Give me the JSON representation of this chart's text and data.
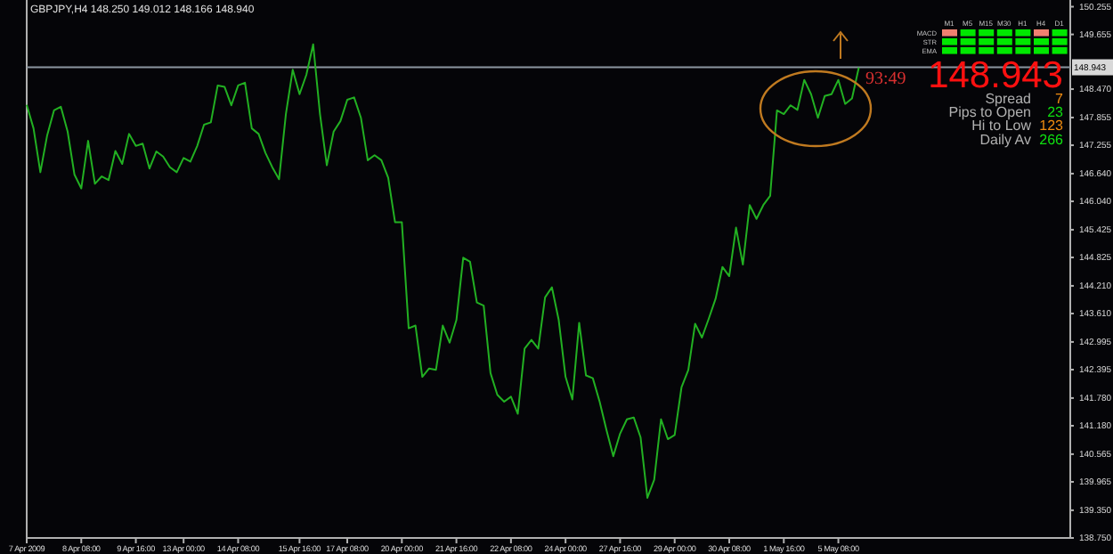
{
  "chart_data": {
    "type": "line",
    "title": "GBPJPY,H4 148.250 149.012 148.166 148.940",
    "categories": [
      "7 Apr 2009",
      null,
      null,
      null,
      null,
      null,
      null,
      null,
      "8 Apr 08:00",
      null,
      null,
      null,
      null,
      null,
      null,
      null,
      "9 Apr 16:00",
      null,
      null,
      null,
      null,
      null,
      null,
      "13 Apr 00:00",
      null,
      null,
      null,
      null,
      null,
      null,
      null,
      "14 Apr 08:00",
      null,
      null,
      null,
      null,
      null,
      null,
      null,
      null,
      "15 Apr 16:00",
      null,
      null,
      null,
      null,
      null,
      null,
      "17 Apr 08:00",
      null,
      null,
      null,
      null,
      null,
      null,
      null,
      "20 Apr 00:00",
      null,
      null,
      null,
      null,
      null,
      null,
      null,
      "21 Apr 16:00",
      null,
      null,
      null,
      null,
      null,
      null,
      null,
      "22 Apr 08:00",
      null,
      null,
      null,
      null,
      null,
      null,
      null,
      "24 Apr 00:00",
      null,
      null,
      null,
      null,
      null,
      null,
      null,
      "27 Apr 16:00",
      null,
      null,
      null,
      null,
      null,
      null,
      null,
      "29 Apr 00:00",
      null,
      null,
      null,
      null,
      null,
      null,
      null,
      "30 Apr 08:00",
      null,
      null,
      null,
      null,
      null,
      null,
      null,
      "1 May 16:00",
      null,
      null,
      null,
      null,
      null,
      null,
      null,
      "5 May 08:00",
      null,
      null,
      null,
      null,
      null,
      null,
      null,
      null,
      null,
      null,
      null,
      null,
      null,
      null,
      null,
      null,
      null,
      null,
      null,
      null,
      null,
      null,
      null,
      null,
      null,
      null,
      null,
      null,
      null,
      null,
      null,
      null,
      null,
      null
    ],
    "series": [
      {
        "color": "#22b022",
        "values": [
          148.13,
          147.62,
          146.67,
          147.47,
          148.01,
          148.09,
          147.55,
          146.62,
          146.32,
          147.35,
          146.42,
          146.58,
          146.5,
          147.13,
          146.85,
          147.5,
          147.24,
          147.29,
          146.75,
          147.12,
          147.01,
          146.78,
          146.67,
          146.98,
          146.9,
          147.24,
          147.7,
          147.75,
          148.55,
          148.52,
          148.12,
          148.55,
          148.61,
          147.62,
          147.5,
          147.09,
          146.78,
          146.52,
          147.93,
          148.89,
          148.36,
          148.78,
          149.44,
          147.93,
          146.82,
          147.55,
          147.78,
          148.24,
          148.29,
          147.85,
          146.93,
          147.04,
          146.93,
          146.55,
          145.59,
          145.59,
          143.29,
          143.35,
          142.24,
          142.42,
          142.39,
          143.35,
          142.98,
          143.47,
          144.82,
          144.73,
          143.85,
          143.78,
          142.32,
          141.85,
          141.7,
          141.81,
          141.44,
          142.85,
          143.04,
          142.85,
          143.96,
          144.18,
          143.47,
          142.24,
          141.75,
          143.41,
          142.27,
          142.21,
          141.7,
          141.09,
          140.52,
          141.01,
          141.32,
          141.36,
          140.93,
          139.62,
          140.01,
          141.32,
          140.89,
          140.98,
          142.01,
          142.39,
          143.39,
          143.09,
          143.5,
          143.93,
          144.62,
          144.42,
          145.47,
          144.67,
          145.96,
          145.66,
          145.96,
          146.16,
          148.01,
          147.93,
          148.12,
          148.02,
          148.67,
          148.36,
          147.85,
          148.32,
          148.36,
          148.67,
          148.15,
          148.27,
          148.94,
          null,
          null,
          null,
          null,
          null,
          null,
          null,
          null,
          null,
          null,
          null,
          null,
          null,
          null,
          null,
          null,
          null,
          null,
          null,
          null,
          null,
          null,
          null,
          null,
          null,
          null,
          null,
          null,
          null,
          null,
          null
        ]
      }
    ],
    "ylim": [
      138.75,
      150.4
    ],
    "yticks": [
      {
        "value": 150.255,
        "label": "150.255"
      },
      {
        "value": 149.655,
        "label": "149.655"
      },
      {
        "value": 148.47,
        "label": "148.470"
      },
      {
        "value": 147.855,
        "label": "147.855"
      },
      {
        "value": 147.255,
        "label": "147.255"
      },
      {
        "value": 146.64,
        "label": "146.640"
      },
      {
        "value": 146.04,
        "label": "146.040"
      },
      {
        "value": 145.425,
        "label": "145.425"
      },
      {
        "value": 144.825,
        "label": "144.825"
      },
      {
        "value": 144.21,
        "label": "144.210"
      },
      {
        "value": 143.61,
        "label": "143.610"
      },
      {
        "value": 142.995,
        "label": "142.995"
      },
      {
        "value": 142.395,
        "label": "142.395"
      },
      {
        "value": 141.78,
        "label": "141.780"
      },
      {
        "value": 141.18,
        "label": "141.180"
      },
      {
        "value": 140.565,
        "label": "140.565"
      },
      {
        "value": 139.965,
        "label": "139.965"
      },
      {
        "value": 139.35,
        "label": "139.350"
      },
      {
        "value": 138.75,
        "label": "138.750"
      }
    ],
    "ref_lines": [
      {
        "axis": "y",
        "value": 148.943,
        "label": "148.943",
        "color": "#8c96a0"
      }
    ],
    "annotations": [
      "93:49",
      "148.943",
      "Spread",
      "7",
      "Pips to Open",
      "23",
      "Hi to Low",
      "123",
      "Daily Av",
      "266",
      "MACD",
      "STR",
      "EMA",
      "M1",
      "M5",
      "M15",
      "M30",
      "H1",
      "H4",
      "D1"
    ]
  }
}
